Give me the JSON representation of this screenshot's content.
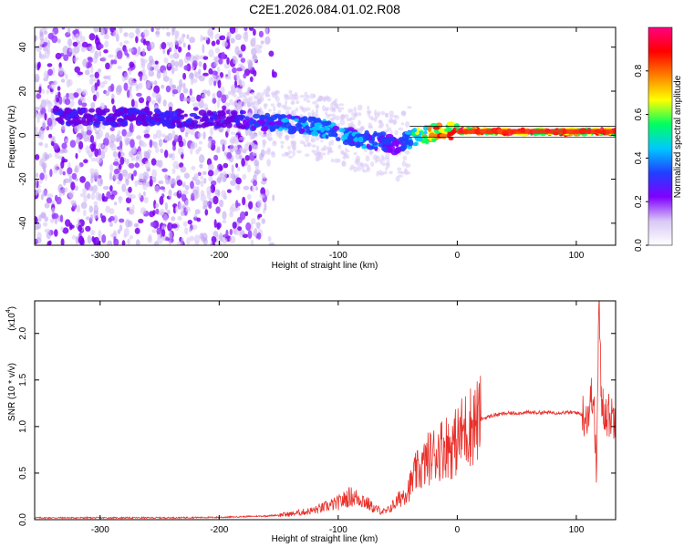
{
  "title": "C2E1.2026.084.01.02.R08",
  "chart_data": [
    {
      "type": "heatmap",
      "xlabel": "Height of straight line (km)",
      "ylabel": "Frequency (Hz)",
      "xlim": [
        -355,
        133
      ],
      "ylim": [
        -50,
        49
      ],
      "x_ticks": [
        -300,
        -200,
        -100,
        0,
        100
      ],
      "y_ticks": [
        -40,
        -20,
        0,
        20,
        40
      ],
      "grid": false,
      "colorbar": {
        "label": "Normalized spectral amplitude",
        "range": [
          0.0,
          1.0
        ],
        "ticks": [
          0.0,
          0.2,
          0.4,
          0.6,
          0.8
        ],
        "colors": [
          "#ffffff",
          "#d9c8f5",
          "#8000ff",
          "#2040ff",
          "#00c8ff",
          "#00ff60",
          "#ffff00",
          "#ff8000",
          "#ff0000",
          "#ff0080"
        ]
      },
      "ridge": {
        "x": [
          -340,
          -300,
          -260,
          -220,
          -180,
          -160,
          -140,
          -120,
          -100,
          -80,
          -60,
          -50,
          -40,
          -30,
          -20,
          -10,
          0,
          20,
          40,
          60,
          80,
          100,
          120,
          133
        ],
        "y": [
          9,
          8,
          8,
          7,
          7,
          6,
          5,
          4,
          1,
          -2,
          -3,
          -5,
          -2,
          0,
          1,
          2,
          2,
          2,
          1.5,
          1.5,
          1.5,
          1.5,
          1.5,
          1.5
        ],
        "amplitude": [
          0.1,
          0.12,
          0.12,
          0.12,
          0.3,
          0.35,
          0.4,
          0.45,
          0.45,
          0.4,
          0.35,
          0.3,
          0.45,
          0.7,
          0.8,
          0.85,
          0.88,
          0.9,
          0.9,
          0.9,
          0.9,
          0.9,
          0.9,
          0.9
        ]
      }
    },
    {
      "type": "line",
      "xlabel": "Height of straight line (km)",
      "ylabel": "SNR (10 * v/v)",
      "y_scale_label": "(x10",
      "y_scale_exponent": "4",
      "xlim": [
        -355,
        133
      ],
      "ylim": [
        0,
        2.35
      ],
      "x_ticks": [
        -300,
        -200,
        -100,
        0,
        100
      ],
      "y_ticks": [
        0.0,
        0.5,
        1.0,
        1.5,
        2.0
      ],
      "grid": false,
      "series": [
        {
          "color": "#e8302a",
          "x": [
            -355,
            -300,
            -250,
            -200,
            -160,
            -140,
            -120,
            -100,
            -90,
            -80,
            -70,
            -60,
            -50,
            -40,
            -35,
            -30,
            -25,
            -20,
            -15,
            -10,
            -5,
            0,
            5,
            10,
            15,
            20,
            30,
            40,
            60,
            80,
            100,
            105,
            110,
            114,
            117,
            119,
            121,
            125,
            133
          ],
          "y": [
            0.02,
            0.02,
            0.02,
            0.025,
            0.04,
            0.06,
            0.1,
            0.18,
            0.25,
            0.22,
            0.12,
            0.08,
            0.2,
            0.35,
            0.5,
            0.55,
            0.65,
            0.7,
            0.75,
            0.8,
            0.78,
            0.85,
            0.95,
            1.0,
            1.05,
            1.08,
            1.12,
            1.14,
            1.15,
            1.15,
            1.15,
            1.13,
            1.14,
            1.4,
            0.5,
            2.35,
            1.3,
            1.13,
            1.1
          ]
        }
      ]
    }
  ]
}
